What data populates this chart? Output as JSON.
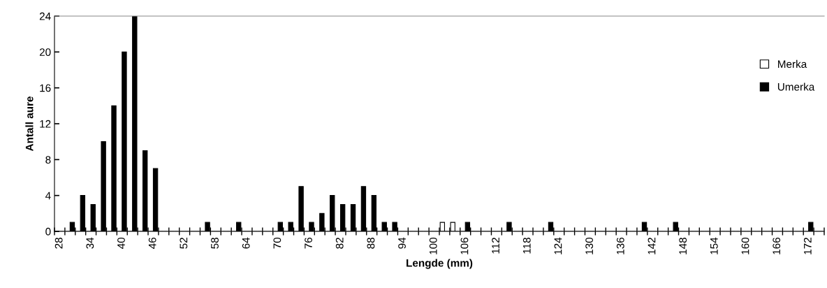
{
  "chart_data": {
    "type": "bar",
    "xlabel": "Lengde (mm)",
    "ylabel": "Antall aure",
    "categories": [
      "28",
      null,
      null,
      "34",
      null,
      null,
      "40",
      null,
      null,
      "46",
      null,
      null,
      "52",
      null,
      null,
      "58",
      null,
      null,
      "64",
      null,
      null,
      "70",
      null,
      null,
      "76",
      null,
      null,
      "82",
      null,
      null,
      "88",
      null,
      null,
      "94",
      null,
      null,
      "100",
      null,
      null,
      "106",
      null,
      null,
      "112",
      null,
      null,
      "118",
      null,
      null,
      "124",
      null,
      null,
      "130",
      null,
      null,
      "136",
      null,
      null,
      "142",
      null,
      null,
      "148",
      null,
      null,
      "154",
      null,
      null,
      "160",
      null,
      null,
      "166",
      null,
      null,
      "172",
      null
    ],
    "series": [
      {
        "name": "Merka",
        "color": "#ffffff",
        "values": [
          0,
          0,
          0,
          0,
          0,
          0,
          0,
          0,
          0,
          0,
          0,
          0,
          0,
          0,
          0,
          0,
          0,
          0,
          0,
          0,
          0,
          0,
          0,
          0,
          0,
          0,
          0,
          0,
          0,
          0,
          0,
          0,
          0,
          0,
          0,
          0,
          0,
          1,
          1,
          0,
          0,
          0,
          0,
          0,
          0,
          0,
          0,
          0,
          0,
          0,
          0,
          0,
          0,
          0,
          0,
          0,
          0,
          0,
          0,
          0,
          0,
          0,
          0,
          0,
          0,
          0,
          0,
          0,
          0,
          0,
          0,
          0,
          0,
          0
        ]
      },
      {
        "name": "Umerka",
        "color": "#000000",
        "values": [
          0,
          1,
          4,
          3,
          10,
          14,
          20,
          24,
          9,
          7,
          0,
          0,
          0,
          0,
          1,
          0,
          0,
          1,
          0,
          0,
          0,
          1,
          1,
          5,
          1,
          2,
          4,
          3,
          3,
          5,
          4,
          1,
          1,
          0,
          0,
          0,
          0,
          0,
          0,
          1,
          0,
          0,
          0,
          1,
          0,
          0,
          0,
          1,
          0,
          0,
          0,
          0,
          0,
          0,
          0,
          0,
          1,
          0,
          0,
          1,
          0,
          0,
          0,
          0,
          0,
          0,
          0,
          0,
          0,
          0,
          0,
          0,
          1,
          0
        ]
      }
    ],
    "ylim": [
      0,
      24
    ],
    "yticks": [
      0,
      4,
      8,
      12,
      16,
      20,
      24
    ],
    "grid": false,
    "legend": "right"
  }
}
